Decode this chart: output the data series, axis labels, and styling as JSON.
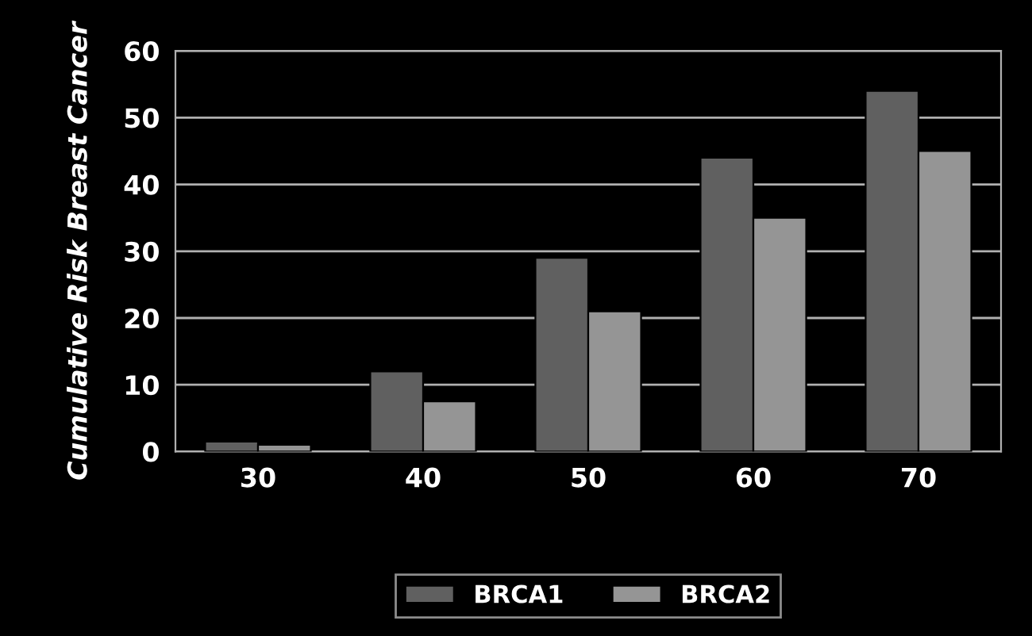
{
  "chart_data": {
    "type": "bar",
    "ylabel": "Cumulative Risk Breast Cancer",
    "categories": [
      "30",
      "40",
      "50",
      "60",
      "70"
    ],
    "series": [
      {
        "name": "BRCA1",
        "color": "#606060",
        "values": [
          1.5,
          12,
          29,
          44,
          54
        ]
      },
      {
        "name": "BRCA2",
        "color": "#959595",
        "values": [
          1,
          7.5,
          21,
          35,
          45
        ]
      }
    ],
    "ylim": [
      0,
      60
    ],
    "yticks": [
      0,
      10,
      20,
      30,
      40,
      50,
      60
    ],
    "grid": "y",
    "legend": "bottom"
  }
}
